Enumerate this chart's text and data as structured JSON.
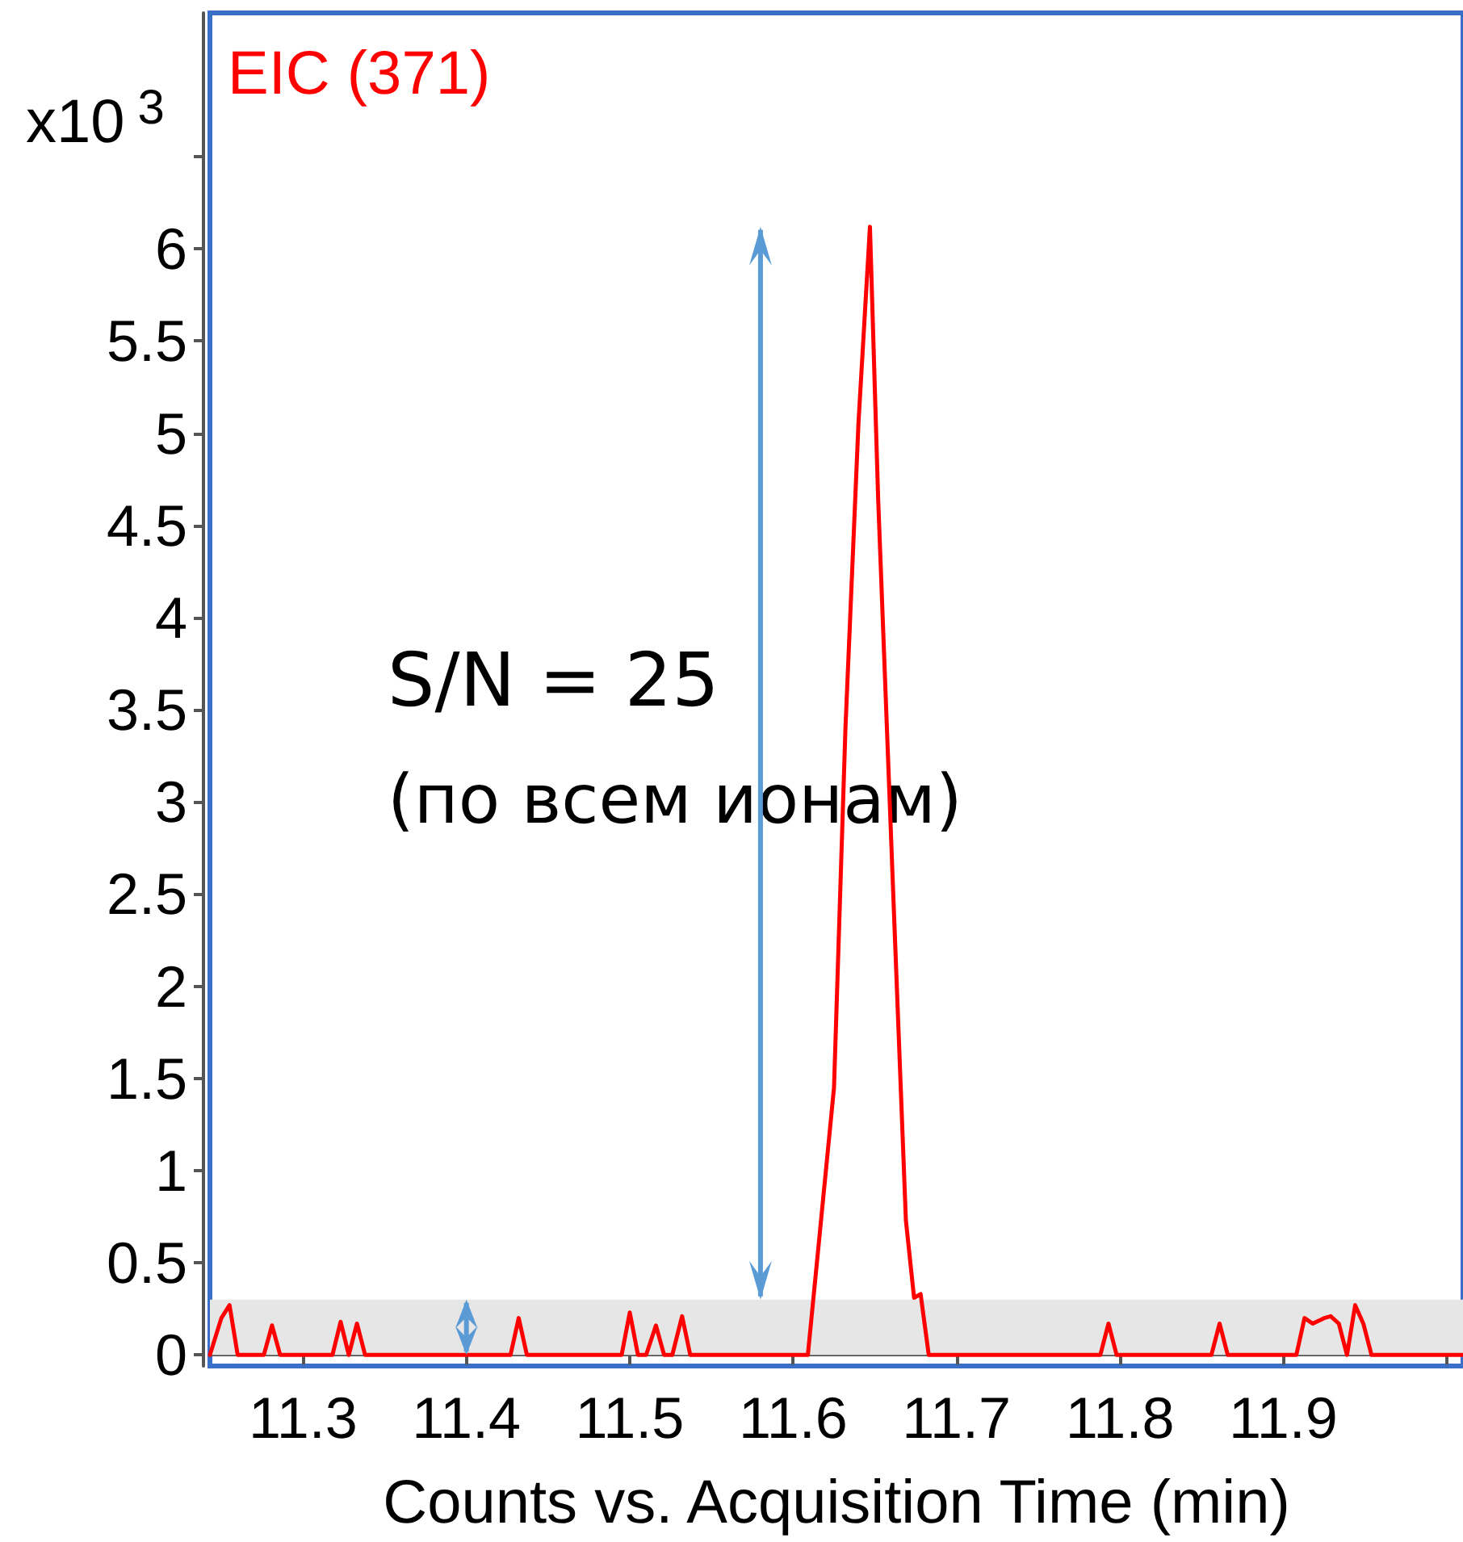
{
  "chart_data": {
    "type": "line",
    "title": "EIC (371)",
    "xlabel": "Counts vs. Acquisition Time (min)",
    "ylabel": "x10$^{3}$",
    "annotations": [
      "S/N = 25",
      "(по всем ионам)"
    ],
    "x": [
      11.243,
      11.25,
      11.255,
      11.26,
      11.276,
      11.281,
      11.286,
      11.318,
      11.323,
      11.328,
      11.333,
      11.338,
      11.427,
      11.432,
      11.437,
      11.495,
      11.5,
      11.505,
      11.51,
      11.516,
      11.521,
      11.526,
      11.532,
      11.537,
      11.609,
      11.625,
      11.632,
      11.64,
      11.647,
      11.652,
      11.661,
      11.669,
      11.674,
      11.678,
      11.683,
      11.788,
      11.793,
      11.798,
      11.856,
      11.861,
      11.866,
      11.908,
      11.913,
      11.918,
      11.925,
      11.929,
      11.934,
      11.939,
      11.944,
      11.949,
      11.954,
      12.01
    ],
    "series": [
      {
        "color": "#ff0000",
        "values": [
          0,
          0.2,
          0.27,
          0,
          0,
          0.16,
          0,
          0,
          0.18,
          0,
          0.17,
          0,
          0,
          0.2,
          0,
          0,
          0.23,
          0,
          0,
          0.16,
          0,
          0,
          0.21,
          0,
          0,
          1.45,
          3.4,
          5.06,
          6.12,
          4.65,
          2.56,
          0.73,
          0.31,
          0.33,
          0,
          0,
          0.17,
          0,
          0,
          0.17,
          0,
          0,
          0.2,
          0.17,
          0.2,
          0.21,
          0.17,
          0,
          0.27,
          0.17,
          0,
          0
        ]
      }
    ],
    "xlim": [
      11.243,
      12.01
    ],
    "xticks": [
      11.3,
      11.4,
      11.5,
      11.6,
      11.7,
      11.8,
      11.9,
      {
        "value": 12.0,
        "label": null
      }
    ],
    "ylim": [
      -0.06,
      7.28
    ],
    "yticks": [
      0,
      0.5,
      1,
      1.5,
      2,
      2.5,
      3,
      3.5,
      4,
      4.5,
      5,
      5.5,
      6,
      {
        "value": 6.5,
        "label": null
      }
    ],
    "bands": [
      {
        "axis": "y",
        "from": 0,
        "to": 0.3,
        "color": "#e6e6e6"
      }
    ],
    "marker": "none",
    "line_style": "solid"
  }
}
